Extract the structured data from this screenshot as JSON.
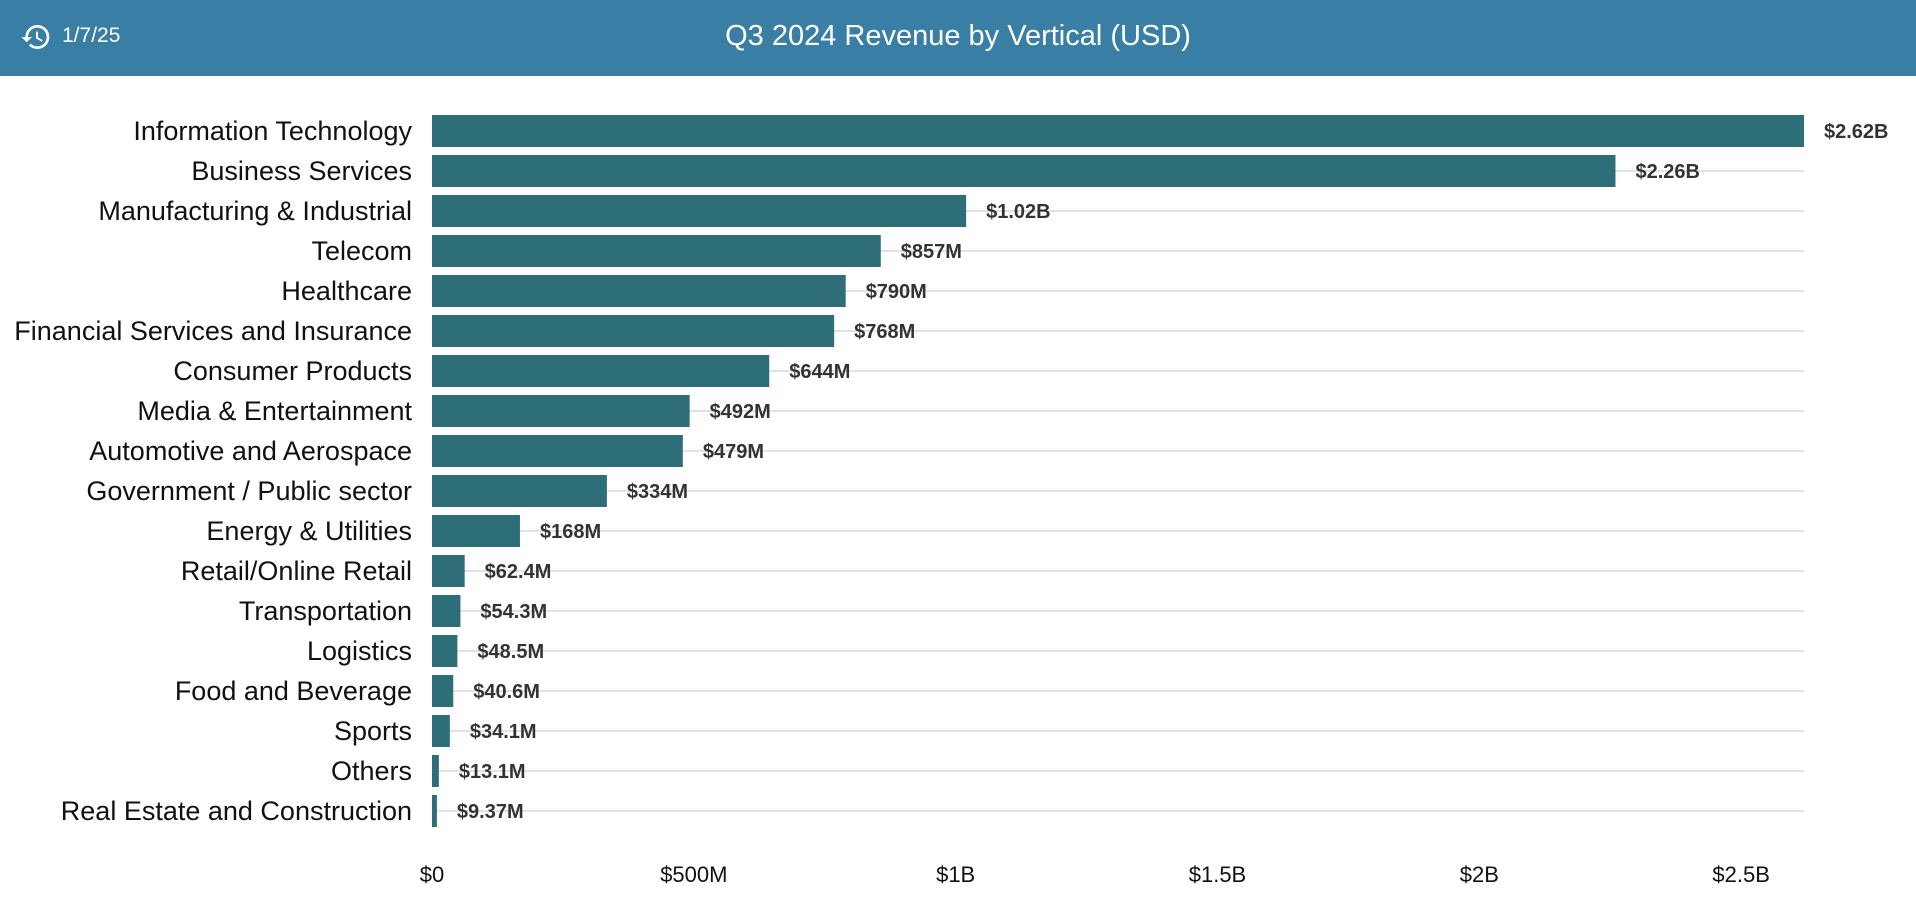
{
  "header": {
    "date": "1/7/25",
    "title": "Q3 2024 Revenue by Vertical (USD)",
    "history_icon": "history-icon",
    "background_color": "#387ea5"
  },
  "chart_data": {
    "type": "bar",
    "orientation": "horizontal",
    "title": "Q3 2024 Revenue by Vertical (USD)",
    "xlabel": "",
    "ylabel": "",
    "bar_color": "#2e6e78",
    "grid": true,
    "xlim": [
      0,
      2620000000
    ],
    "xticks": [
      {
        "value": 0,
        "label": "$0"
      },
      {
        "value": 500000000,
        "label": "$500M"
      },
      {
        "value": 1000000000,
        "label": "$1B"
      },
      {
        "value": 1500000000,
        "label": "$1.5B"
      },
      {
        "value": 2000000000,
        "label": "$2B"
      },
      {
        "value": 2500000000,
        "label": "$2.5B"
      }
    ],
    "categories": [
      "Information Technology",
      "Business Services",
      "Manufacturing & Industrial",
      "Telecom",
      "Healthcare",
      "Financial Services and Insurance",
      "Consumer Products",
      "Media & Entertainment",
      "Automotive and Aerospace",
      "Government / Public sector",
      "Energy & Utilities",
      "Retail/Online Retail",
      "Transportation",
      "Logistics",
      "Food and Beverage",
      "Sports",
      "Others",
      "Real Estate and Construction"
    ],
    "values": [
      2620000000,
      2260000000,
      1020000000,
      857000000,
      790000000,
      768000000,
      644000000,
      492000000,
      479000000,
      334000000,
      168000000,
      62400000,
      54300000,
      48500000,
      40600000,
      34100000,
      13100000,
      9370000
    ],
    "value_labels": [
      "$2.62B",
      "$2.26B",
      "$1.02B",
      "$857M",
      "$790M",
      "$768M",
      "$644M",
      "$492M",
      "$479M",
      "$334M",
      "$168M",
      "$62.4M",
      "$54.3M",
      "$48.5M",
      "$40.6M",
      "$34.1M",
      "$13.1M",
      "$9.37M"
    ]
  }
}
